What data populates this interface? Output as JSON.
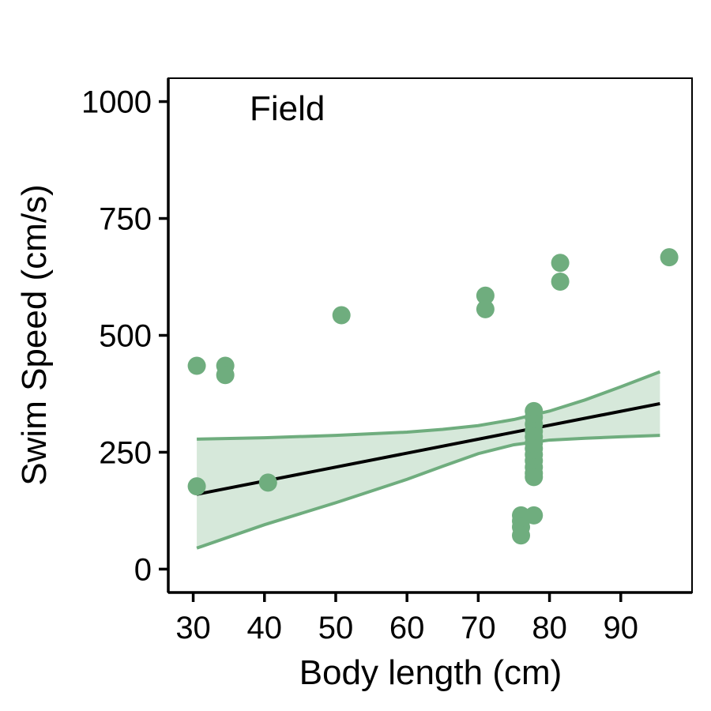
{
  "chart_data": {
    "type": "scatter",
    "panel_label": "Field",
    "xlabel": "Body length (cm)",
    "ylabel": "Swim Speed (cm/s)",
    "xlim": [
      26.5,
      100
    ],
    "ylim": [
      -50,
      1050
    ],
    "x_ticks": [
      30,
      40,
      50,
      60,
      70,
      80,
      90
    ],
    "y_ticks": [
      0,
      250,
      500,
      750,
      1000
    ],
    "colors": {
      "points": "#6fad7e",
      "ribbon_fill": "#d6e8da",
      "ribbon_edge": "#6fad7e",
      "fit_line": "#000000"
    },
    "points": [
      [
        30.5,
        435
      ],
      [
        30.5,
        177
      ],
      [
        34.5,
        435
      ],
      [
        34.5,
        415
      ],
      [
        40.5,
        185
      ],
      [
        50.8,
        543
      ],
      [
        71,
        585
      ],
      [
        71,
        556
      ],
      [
        76,
        115
      ],
      [
        76,
        103
      ],
      [
        76,
        90
      ],
      [
        76,
        72
      ],
      [
        77.8,
        115
      ],
      [
        77.8,
        338
      ],
      [
        77.8,
        325
      ],
      [
        77.8,
        310
      ],
      [
        77.8,
        295
      ],
      [
        77.8,
        283
      ],
      [
        77.8,
        270
      ],
      [
        77.8,
        258
      ],
      [
        77.8,
        245
      ],
      [
        77.8,
        232
      ],
      [
        77.8,
        218
      ],
      [
        77.8,
        205
      ],
      [
        77.8,
        197
      ],
      [
        81.5,
        655
      ],
      [
        81.5,
        615
      ],
      [
        96.8,
        667
      ]
    ],
    "fit_line": [
      [
        30.5,
        160
      ],
      [
        95.5,
        354
      ]
    ],
    "confidence_band": {
      "x": [
        30.5,
        40,
        50,
        60,
        65,
        70,
        75,
        80,
        85,
        90,
        95.5
      ],
      "upper": [
        278,
        281,
        286,
        293,
        299,
        307,
        320,
        338,
        362,
        390,
        422
      ],
      "lower": [
        45,
        95,
        142,
        192,
        220,
        247,
        266,
        276,
        280,
        283,
        286
      ]
    }
  }
}
